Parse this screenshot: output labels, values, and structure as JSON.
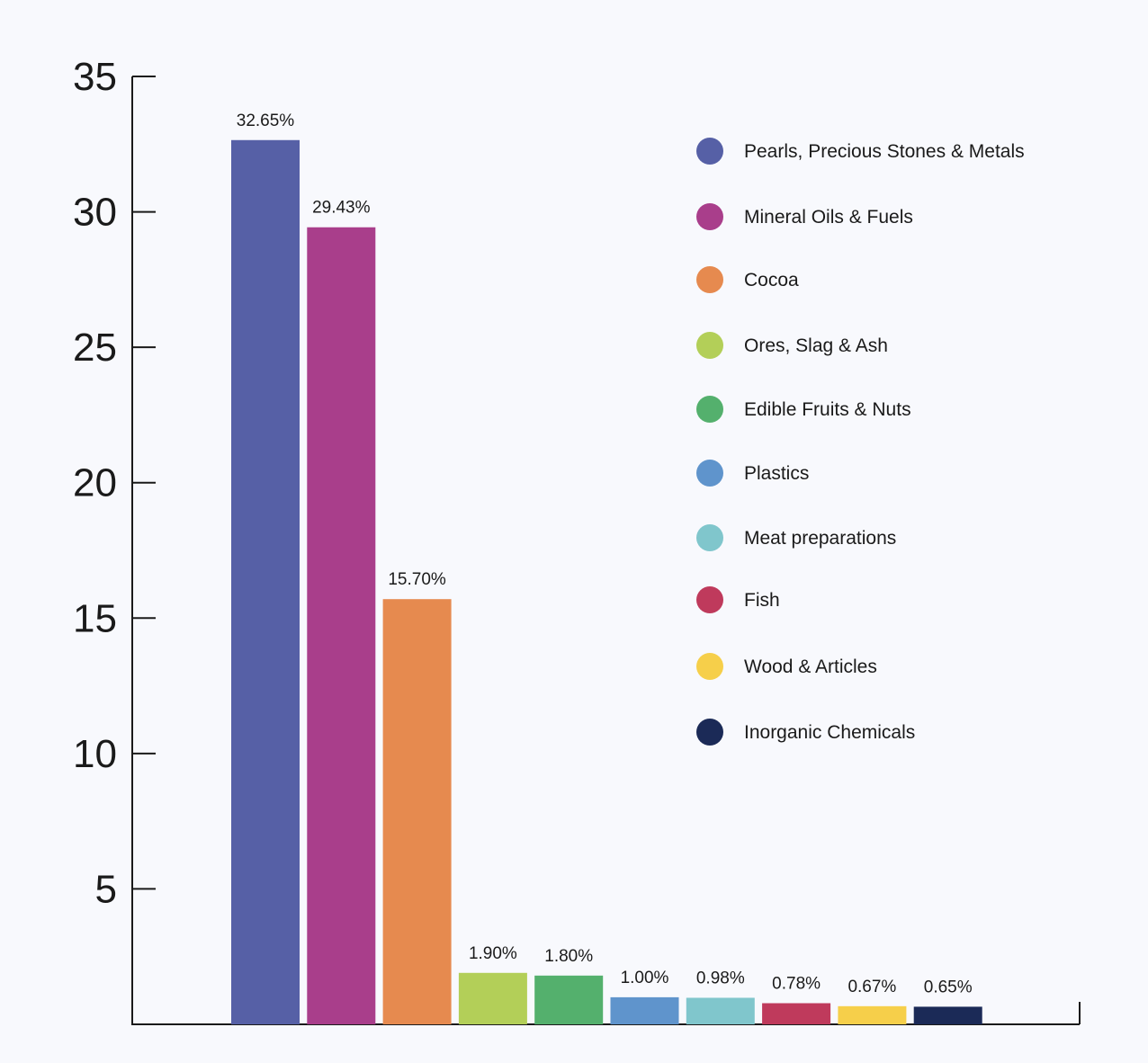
{
  "chart_data": {
    "type": "bar",
    "title": "",
    "xlabel": "",
    "ylabel": "",
    "ylim": [
      0,
      35
    ],
    "yticks": [
      5,
      10,
      15,
      20,
      25,
      30,
      35
    ],
    "grid": false,
    "legend_position": "top-right",
    "categories": [
      "Pearls, Precious Stones & Metals",
      "Mineral Oils & Fuels",
      "Cocoa",
      "Ores, Slag & Ash",
      "Edible Fruits & Nuts",
      "Plastics",
      "Meat preparations",
      "Fish",
      "Wood & Articles",
      "Inorganic Chemicals"
    ],
    "values": [
      32.65,
      29.43,
      15.7,
      1.9,
      1.8,
      1.0,
      0.98,
      0.78,
      0.67,
      0.65
    ],
    "value_labels": [
      "32.65%",
      "29.43%",
      "15.70%",
      "1.90%",
      "1.80%",
      "1.00%",
      "0.98%",
      "0.78%",
      "0.67%",
      "0.65%"
    ],
    "colors": [
      "#5660a6",
      "#a93e8b",
      "#e68a4f",
      "#b3cf58",
      "#54b06d",
      "#5f94cc",
      "#80c6cc",
      "#bf3a5c",
      "#f6cf4a",
      "#1b2a57"
    ]
  }
}
